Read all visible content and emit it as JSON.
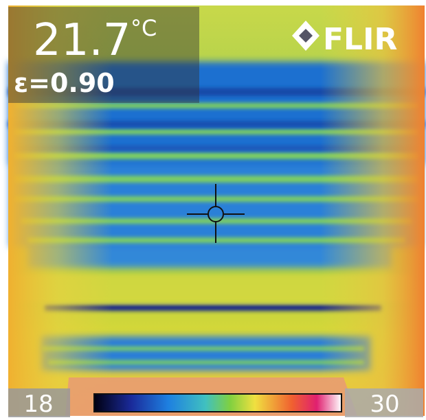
{
  "reading": {
    "temperature": "21.7",
    "unit": "°C",
    "emissivity": "ε=0.90"
  },
  "brand": "FLIR",
  "scale": {
    "min": "18",
    "max": "30"
  }
}
